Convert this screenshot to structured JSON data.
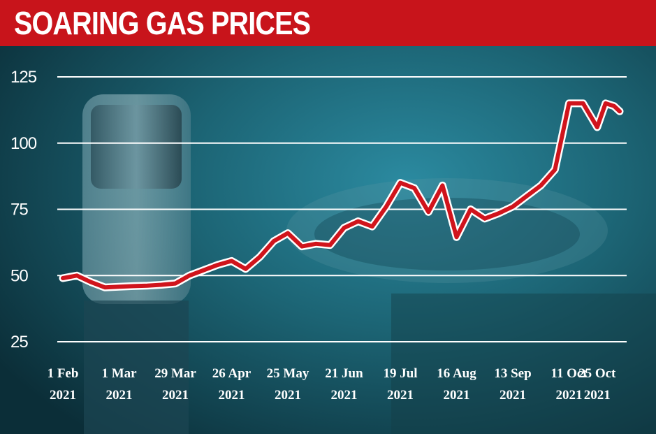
{
  "header": {
    "title": "SOARING GAS PRICES"
  },
  "colors": {
    "title_bar": "#c8141b",
    "line": "#d0141c",
    "grid": "#ffffff",
    "text": "#ffffff",
    "background": "#1a5a6a"
  },
  "chart_data": {
    "type": "line",
    "title": "SOARING GAS PRICES",
    "xlabel": "",
    "ylabel": "",
    "ylim": [
      25,
      125
    ],
    "yticks": [
      25,
      50,
      75,
      100,
      125
    ],
    "grid": "horizontal",
    "xtick_labels": [
      [
        "1 Feb",
        "2021"
      ],
      [
        "1 Mar",
        "2021"
      ],
      [
        "29 Mar",
        "2021"
      ],
      [
        "26 Apr",
        "2021"
      ],
      [
        "25 May",
        "2021"
      ],
      [
        "21 Jun",
        "2021"
      ],
      [
        "19 Jul",
        "2021"
      ],
      [
        "16 Aug",
        "2021"
      ],
      [
        "13 Sep",
        "2021"
      ],
      [
        "11 Oct",
        "2021"
      ],
      [
        "25 Oct",
        "2021"
      ]
    ],
    "xtick_positions": [
      0,
      4,
      8,
      12,
      16,
      20,
      24,
      28,
      32,
      36,
      38
    ],
    "x": [
      0,
      1,
      2,
      3,
      4,
      5,
      6,
      7,
      8,
      9,
      10,
      11,
      12,
      13,
      14,
      15,
      16,
      17,
      18,
      19,
      20,
      21,
      22,
      23,
      24,
      25,
      26,
      27,
      28,
      29,
      30,
      31,
      32,
      33,
      34,
      35,
      36,
      37,
      38,
      38.6,
      39.2,
      39.6
    ],
    "series": [
      {
        "values": [
          49,
          50,
          47.5,
          45.5,
          45.8,
          46,
          46.2,
          46.5,
          47,
          50,
          52,
          54,
          55.5,
          52.5,
          57,
          63,
          66,
          61,
          62,
          61.5,
          68,
          70.5,
          68.5,
          76,
          85,
          83,
          74,
          84,
          64.5,
          75,
          71.5,
          73.5,
          76,
          80,
          84,
          90,
          115,
          115,
          106,
          115,
          114,
          112
        ]
      }
    ]
  }
}
